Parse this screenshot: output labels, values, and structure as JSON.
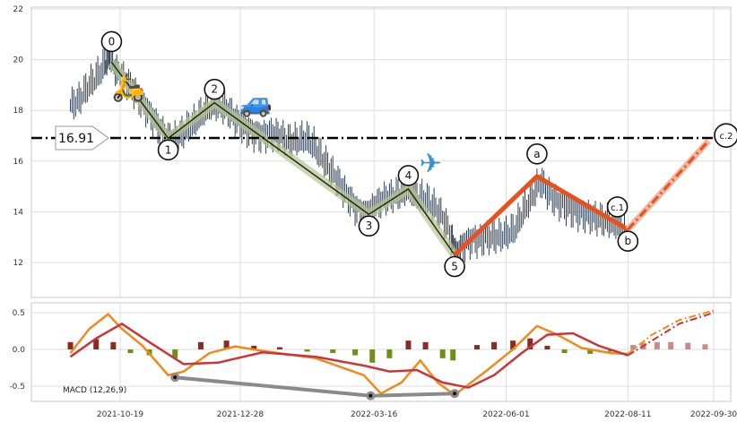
{
  "chart_data": {
    "type": "line",
    "x_ticks": [
      "2021-10-19",
      "2021-12-28",
      "2022-03-16",
      "2022-06-01",
      "2022-08-11",
      "2022-09-30"
    ],
    "price_panel": {
      "ylim": [
        11,
        22
      ],
      "y_ticks": [
        "12",
        "14",
        "16",
        "18",
        "20",
        "22"
      ],
      "grid": true,
      "reference_line": {
        "value": 16.91,
        "label": "16.91"
      },
      "price_series": [
        [
          "2021-09-20",
          18.2
        ],
        [
          "2021-09-25",
          18.4
        ],
        [
          "2021-09-30",
          18.9
        ],
        [
          "2021-10-05",
          19.3
        ],
        [
          "2021-10-10",
          19.8
        ],
        [
          "2021-10-13",
          20.2
        ],
        [
          "2021-10-17",
          19.5
        ],
        [
          "2021-10-22",
          19.2
        ],
        [
          "2021-10-27",
          18.8
        ],
        [
          "2021-11-01",
          18.3
        ],
        [
          "2021-11-06",
          17.8
        ],
        [
          "2021-11-11",
          17.3
        ],
        [
          "2021-11-16",
          16.9
        ],
        [
          "2021-11-21",
          16.9
        ],
        [
          "2021-11-26",
          17.2
        ],
        [
          "2021-12-01",
          17.5
        ],
        [
          "2021-12-06",
          17.9
        ],
        [
          "2021-12-11",
          18.2
        ],
        [
          "2021-12-16",
          18.2
        ],
        [
          "2021-12-21",
          18.0
        ],
        [
          "2021-12-26",
          17.6
        ],
        [
          "2021-12-31",
          17.3
        ],
        [
          "2022-01-05",
          17.1
        ],
        [
          "2022-01-10",
          17.0
        ],
        [
          "2022-01-15",
          17.1
        ],
        [
          "2022-01-20",
          17.0
        ],
        [
          "2022-01-25",
          16.8
        ],
        [
          "2022-01-30",
          16.8
        ],
        [
          "2022-02-04",
          16.9
        ],
        [
          "2022-02-09",
          16.6
        ],
        [
          "2022-02-14",
          16.1
        ],
        [
          "2022-02-19",
          15.6
        ],
        [
          "2022-02-24",
          15.1
        ],
        [
          "2022-03-01",
          14.6
        ],
        [
          "2022-03-06",
          14.1
        ],
        [
          "2022-03-11",
          13.9
        ],
        [
          "2022-03-16",
          14.2
        ],
        [
          "2022-03-21",
          14.5
        ],
        [
          "2022-03-26",
          14.6
        ],
        [
          "2022-03-31",
          14.7
        ],
        [
          "2022-04-05",
          14.9
        ],
        [
          "2022-04-10",
          14.6
        ],
        [
          "2022-04-15",
          14.5
        ],
        [
          "2022-04-20",
          14.2
        ],
        [
          "2022-04-25",
          13.8
        ],
        [
          "2022-04-30",
          13.0
        ],
        [
          "2022-05-03",
          12.3
        ],
        [
          "2022-05-07",
          12.7
        ],
        [
          "2022-05-12",
          12.9
        ],
        [
          "2022-05-17",
          12.9
        ],
        [
          "2022-05-22",
          13.0
        ],
        [
          "2022-05-27",
          13.0
        ],
        [
          "2022-06-01",
          13.1
        ],
        [
          "2022-06-06",
          13.3
        ],
        [
          "2022-06-11",
          14.0
        ],
        [
          "2022-06-16",
          14.6
        ],
        [
          "2022-06-21",
          15.2
        ],
        [
          "2022-06-26",
          14.7
        ],
        [
          "2022-07-01",
          14.4
        ],
        [
          "2022-07-06",
          14.2
        ],
        [
          "2022-07-11",
          14.0
        ],
        [
          "2022-07-16",
          13.9
        ],
        [
          "2022-07-21",
          13.8
        ],
        [
          "2022-07-26",
          13.7
        ],
        [
          "2022-07-31",
          13.6
        ],
        [
          "2022-08-05",
          13.5
        ],
        [
          "2022-08-10",
          13.4
        ]
      ],
      "wave_labels": [
        {
          "label": "0",
          "x": "2021-10-14",
          "y": 19.9
        },
        {
          "label": "1",
          "x": "2021-11-16",
          "y": 16.9
        },
        {
          "label": "2",
          "x": "2021-12-13",
          "y": 18.3
        },
        {
          "label": "3",
          "x": "2022-03-13",
          "y": 13.9
        },
        {
          "label": "4",
          "x": "2022-04-05",
          "y": 14.9
        },
        {
          "label": "5",
          "x": "2022-05-02",
          "y": 12.3
        },
        {
          "label": "a",
          "x": "2022-06-19",
          "y": 15.4
        },
        {
          "label": "c.1",
          "x": "2022-08-08",
          "y": 13.7
        },
        {
          "label": "b",
          "x": "2022-08-11",
          "y": 13.3
        },
        {
          "label": "c.2",
          "x": "2022-09-30",
          "y": 16.8
        }
      ],
      "impulse_wave": [
        [
          "2021-10-14",
          19.9
        ],
        [
          "2021-11-16",
          16.9
        ],
        [
          "2021-12-13",
          18.3
        ],
        [
          "2022-03-13",
          13.9
        ],
        [
          "2022-04-05",
          14.9
        ],
        [
          "2022-05-02",
          12.3
        ]
      ],
      "correction_wave": [
        [
          "2022-05-02",
          12.3
        ],
        [
          "2022-06-19",
          15.4
        ],
        [
          "2022-08-11",
          13.3
        ]
      ],
      "projection_wave": [
        [
          "2022-08-11",
          13.3
        ],
        [
          "2022-09-27",
          16.8
        ]
      ],
      "icons": [
        {
          "name": "scooter-icon",
          "glyph": "🛵",
          "x": "2021-10-24",
          "y": 18.9
        },
        {
          "name": "car-icon",
          "glyph": "🚙",
          "x": "2022-01-06",
          "y": 18.3
        },
        {
          "name": "airplane-icon",
          "glyph": "✈",
          "x": "2022-04-18",
          "y": 15.9
        }
      ]
    },
    "macd_panel": {
      "label": "MACD (12,26,9)",
      "ylim": [
        -0.7,
        0.6
      ],
      "y_ticks": [
        "-0.5",
        "0.0",
        "0.5"
      ],
      "macd_line": [
        [
          "2021-09-20",
          -0.05
        ],
        [
          "2021-10-01",
          0.28
        ],
        [
          "2021-10-12",
          0.48
        ],
        [
          "2021-10-20",
          0.28
        ],
        [
          "2021-11-01",
          0.05
        ],
        [
          "2021-11-16",
          -0.35
        ],
        [
          "2021-11-25",
          -0.3
        ],
        [
          "2021-12-10",
          -0.05
        ],
        [
          "2021-12-25",
          0.04
        ],
        [
          "2022-01-10",
          -0.02
        ],
        [
          "2022-02-10",
          -0.12
        ],
        [
          "2022-03-10",
          -0.35
        ],
        [
          "2022-03-20",
          -0.6
        ],
        [
          "2022-04-01",
          -0.45
        ],
        [
          "2022-04-12",
          -0.15
        ],
        [
          "2022-04-22",
          -0.45
        ],
        [
          "2022-05-02",
          -0.62
        ],
        [
          "2022-05-20",
          -0.3
        ],
        [
          "2022-06-05",
          0.0
        ],
        [
          "2022-06-19",
          0.32
        ],
        [
          "2022-07-01",
          0.2
        ],
        [
          "2022-07-15",
          0.02
        ],
        [
          "2022-08-01",
          -0.05
        ],
        [
          "2022-08-11",
          -0.06
        ]
      ],
      "signal_line": [
        [
          "2021-09-20",
          -0.1
        ],
        [
          "2021-10-05",
          0.15
        ],
        [
          "2021-10-20",
          0.35
        ],
        [
          "2021-11-05",
          0.1
        ],
        [
          "2021-11-25",
          -0.2
        ],
        [
          "2021-12-15",
          -0.18
        ],
        [
          "2022-01-10",
          -0.04
        ],
        [
          "2022-02-10",
          -0.1
        ],
        [
          "2022-03-10",
          -0.22
        ],
        [
          "2022-03-25",
          -0.3
        ],
        [
          "2022-04-10",
          -0.28
        ],
        [
          "2022-04-25",
          -0.45
        ],
        [
          "2022-05-10",
          -0.52
        ],
        [
          "2022-05-25",
          -0.35
        ],
        [
          "2022-06-10",
          -0.05
        ],
        [
          "2022-06-25",
          0.2
        ],
        [
          "2022-07-10",
          0.22
        ],
        [
          "2022-07-25",
          0.05
        ],
        [
          "2022-08-11",
          -0.08
        ]
      ],
      "histogram": [
        [
          "2021-09-20",
          0.1
        ],
        [
          "2021-10-05",
          0.14
        ],
        [
          "2021-10-15",
          0.1
        ],
        [
          "2021-10-25",
          -0.05
        ],
        [
          "2021-11-05",
          -0.08
        ],
        [
          "2021-11-20",
          -0.12
        ],
        [
          "2021-12-05",
          0.1
        ],
        [
          "2021-12-20",
          0.12
        ],
        [
          "2022-01-05",
          0.05
        ],
        [
          "2022-01-20",
          0.03
        ],
        [
          "2022-02-05",
          -0.03
        ],
        [
          "2022-02-20",
          -0.05
        ],
        [
          "2022-03-05",
          -0.08
        ],
        [
          "2022-03-15",
          -0.18
        ],
        [
          "2022-03-25",
          -0.12
        ],
        [
          "2022-04-05",
          0.12
        ],
        [
          "2022-04-15",
          0.1
        ],
        [
          "2022-04-25",
          -0.12
        ],
        [
          "2022-05-01",
          -0.15
        ],
        [
          "2022-05-15",
          0.06
        ],
        [
          "2022-05-25",
          0.1
        ],
        [
          "2022-06-05",
          0.12
        ],
        [
          "2022-06-15",
          0.15
        ],
        [
          "2022-06-25",
          0.05
        ],
        [
          "2022-07-05",
          -0.05
        ],
        [
          "2022-07-20",
          -0.06
        ],
        [
          "2022-08-01",
          -0.03
        ],
        [
          "2022-08-10",
          0.0
        ]
      ],
      "projected_histogram": [
        [
          "2022-08-14",
          0.06
        ],
        [
          "2022-08-20",
          0.09
        ],
        [
          "2022-08-28",
          0.1
        ],
        [
          "2022-09-05",
          0.1
        ],
        [
          "2022-09-15",
          0.09
        ],
        [
          "2022-09-25",
          0.07
        ]
      ],
      "projected_macd": [
        [
          "2022-08-11",
          -0.06
        ],
        [
          "2022-08-25",
          0.2
        ],
        [
          "2022-09-10",
          0.4
        ],
        [
          "2022-09-30",
          0.53
        ]
      ],
      "projected_signal": [
        [
          "2022-08-11",
          -0.08
        ],
        [
          "2022-08-25",
          0.12
        ],
        [
          "2022-09-10",
          0.35
        ],
        [
          "2022-09-30",
          0.5
        ]
      ],
      "divergence_line": [
        [
          "2021-11-20",
          -0.38
        ],
        [
          "2022-03-14",
          -0.63
        ],
        [
          "2022-05-02",
          -0.6
        ]
      ]
    }
  }
}
